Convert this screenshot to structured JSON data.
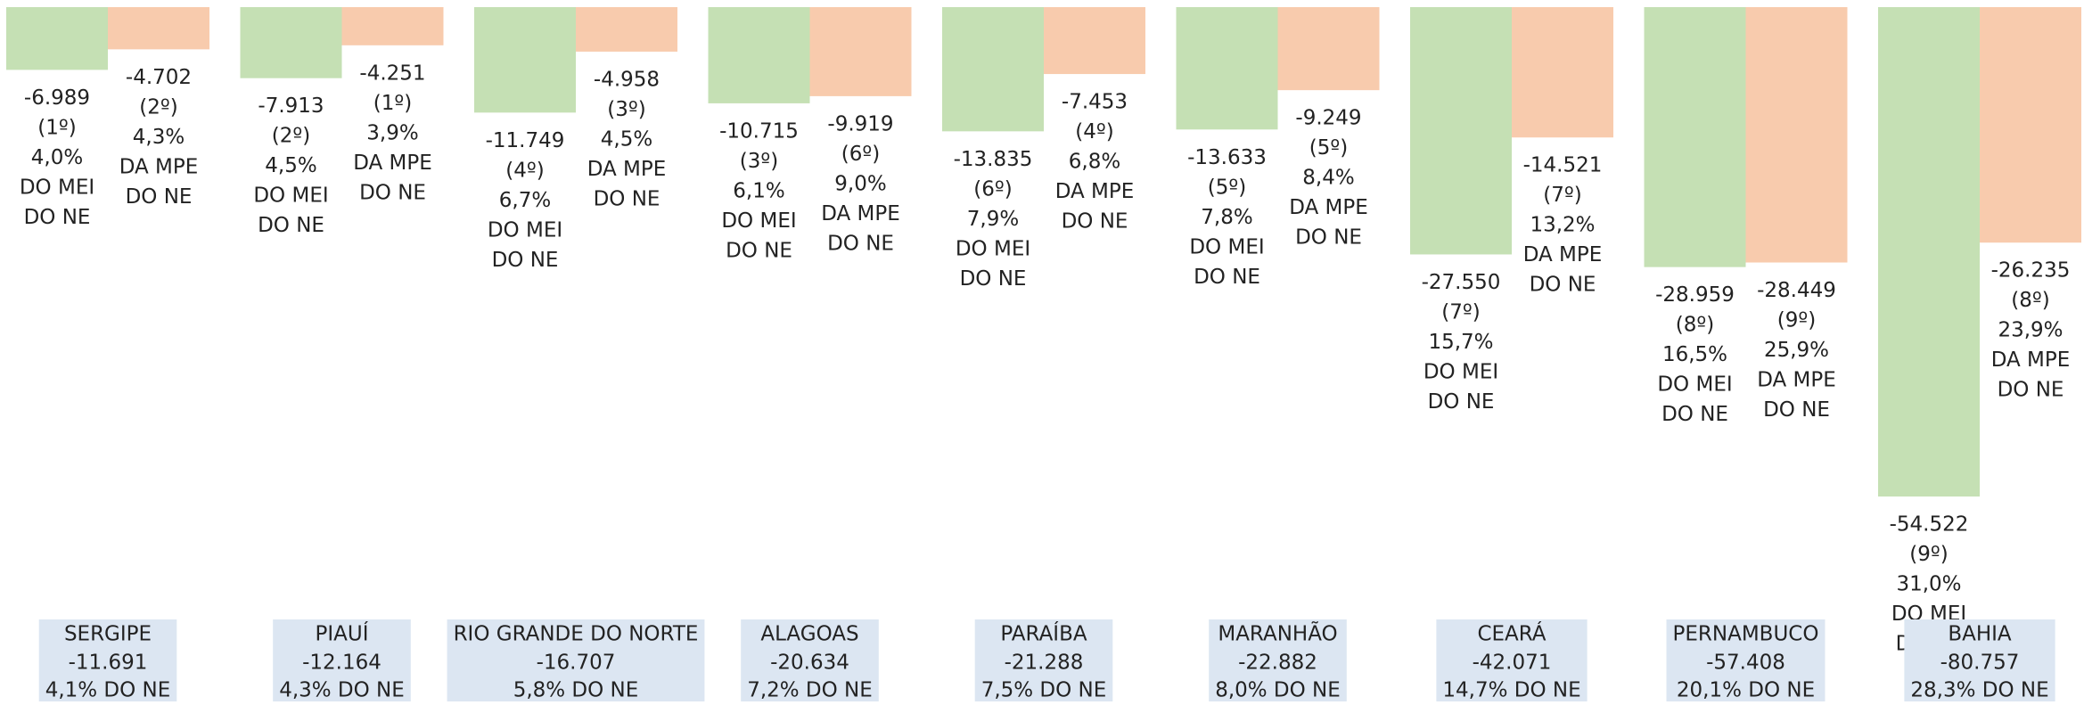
{
  "chart_data": {
    "type": "bar",
    "categories": [
      "SERGIPE",
      "PIAUÍ",
      "RIO GRANDE DO NORTE",
      "ALAGOAS",
      "PARAÍBA",
      "MARANHÃO",
      "CEARÁ",
      "PERNAMBUCO",
      "BAHIA"
    ],
    "ylim": [
      -70000,
      0
    ],
    "series": [
      {
        "color": "#c5e0b4",
        "values": [
          -6989,
          -7913,
          -11749,
          -10715,
          -13835,
          -13633,
          -27550,
          -28959,
          -54522
        ],
        "value_labels": [
          "-6.989",
          "-7.913",
          "-11.749",
          "-10.715",
          "-13.835",
          "-13.633",
          "-27.550",
          "-28.959",
          "-54.522"
        ],
        "rank_labels": [
          "(1º)",
          "(2º)",
          "(4º)",
          "(3º)",
          "(6º)",
          "(5º)",
          "(7º)",
          "(8º)",
          "(9º)"
        ],
        "shares": [
          4.0,
          4.5,
          6.7,
          6.1,
          7.9,
          7.8,
          15.7,
          16.5,
          31.0
        ],
        "share_labels": [
          "4,0%",
          "4,5%",
          "6,7%",
          "6,1%",
          "7,9%",
          "7,8%",
          "15,7%",
          "16,5%",
          "31,0%"
        ],
        "note_lines": [
          "DO MEI",
          "DO NE"
        ]
      },
      {
        "color": "#f8cbad",
        "values": [
          -4702,
          -4251,
          -4958,
          -9919,
          -7453,
          -9249,
          -14521,
          -28449,
          -26235
        ],
        "value_labels": [
          "-4.702",
          "-4.251",
          "-4.958",
          "-9.919",
          "-7.453",
          "-9.249",
          "-14.521",
          "-28.449",
          "-26.235"
        ],
        "rank_labels": [
          "(2º)",
          "(1º)",
          "(3º)",
          "(6º)",
          "(4º)",
          "(5º)",
          "(7º)",
          "(9º)",
          "(8º)"
        ],
        "shares": [
          4.3,
          3.9,
          4.5,
          9.0,
          6.8,
          8.4,
          13.2,
          25.9,
          23.9
        ],
        "share_labels": [
          "4,3%",
          "3,9%",
          "4,5%",
          "9,0%",
          "6,8%",
          "8,4%",
          "13,2%",
          "25,9%",
          "23,9%"
        ],
        "note_lines": [
          "DA MPE",
          "DO NE"
        ]
      }
    ],
    "totals": [
      -11691,
      -12164,
      -16707,
      -20634,
      -21288,
      -22882,
      -42071,
      -57408,
      -80757
    ],
    "total_labels": [
      "-11.691",
      "-12.164",
      "-16.707",
      "-20.634",
      "-21.288",
      "-22.882",
      "-42.071",
      "-57.408",
      "-80.757"
    ],
    "total_shares": [
      4.1,
      4.3,
      5.8,
      7.2,
      7.5,
      8.0,
      14.7,
      20.1,
      28.3
    ],
    "total_share_labels": [
      "4,1% DO NE",
      "4,3% DO NE",
      "5,8% DO NE",
      "7,2% DO NE",
      "7,5% DO NE",
      "8,0% DO NE",
      "14,7% DO NE",
      "20,1% DO NE",
      "28,3% DO NE"
    ]
  }
}
